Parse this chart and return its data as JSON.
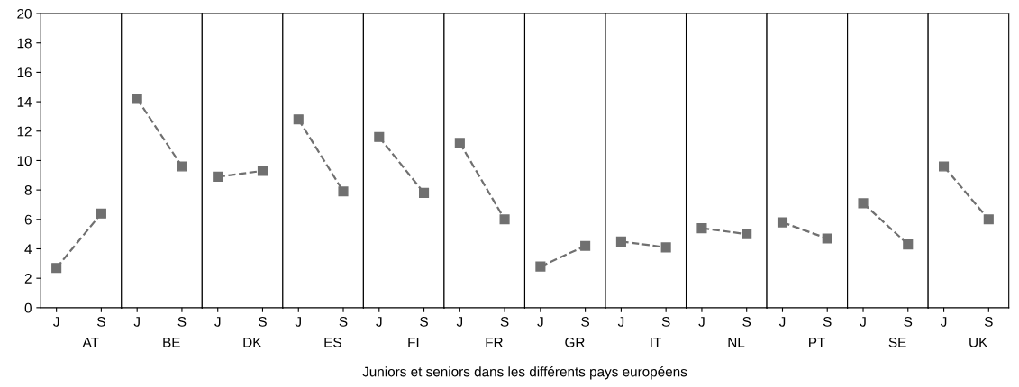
{
  "chart_data": [
    {
      "type": "line",
      "categories": [
        "J",
        "S"
      ],
      "xlabel": "AT",
      "ylim": [
        0,
        20
      ],
      "yticks": [
        0,
        2,
        4,
        6,
        8,
        10,
        12,
        14,
        16,
        18,
        20
      ],
      "marker": "square",
      "line_style": "dashed",
      "grid": false,
      "series": [
        {
          "color": "#707070",
          "values": [
            2.7,
            6.4
          ]
        }
      ],
      "annotations": [
        "Juniors et seniors dans les différents pays européens"
      ]
    },
    {
      "type": "line",
      "categories": [
        "J",
        "S"
      ],
      "xlabel": "BE",
      "ylim": [
        0,
        20
      ],
      "tick_labels": "x",
      "marker": "square",
      "line_style": "dashed",
      "grid": false,
      "series": [
        {
          "color": "#707070",
          "values": [
            14.2,
            9.6
          ]
        }
      ]
    },
    {
      "type": "line",
      "categories": [
        "J",
        "S"
      ],
      "xlabel": "DK",
      "ylim": [
        0,
        20
      ],
      "tick_labels": "x",
      "marker": "square",
      "line_style": "dashed",
      "grid": false,
      "series": [
        {
          "color": "#707070",
          "values": [
            8.9,
            9.3
          ]
        }
      ]
    },
    {
      "type": "line",
      "categories": [
        "J",
        "S"
      ],
      "xlabel": "ES",
      "ylim": [
        0,
        20
      ],
      "tick_labels": "x",
      "marker": "square",
      "line_style": "dashed",
      "grid": false,
      "series": [
        {
          "color": "#707070",
          "values": [
            12.8,
            7.9
          ]
        }
      ]
    },
    {
      "type": "line",
      "categories": [
        "J",
        "S"
      ],
      "xlabel": "FI",
      "ylim": [
        0,
        20
      ],
      "tick_labels": "x",
      "marker": "square",
      "line_style": "dashed",
      "grid": false,
      "series": [
        {
          "color": "#707070",
          "values": [
            11.6,
            7.8
          ]
        }
      ]
    },
    {
      "type": "line",
      "categories": [
        "J",
        "S"
      ],
      "xlabel": "FR",
      "ylim": [
        0,
        20
      ],
      "tick_labels": "x",
      "marker": "square",
      "line_style": "dashed",
      "grid": false,
      "series": [
        {
          "color": "#707070",
          "values": [
            11.2,
            6.0
          ]
        }
      ]
    },
    {
      "type": "line",
      "categories": [
        "J",
        "S"
      ],
      "xlabel": "GR",
      "ylim": [
        0,
        20
      ],
      "tick_labels": "x",
      "marker": "square",
      "line_style": "dashed",
      "grid": false,
      "series": [
        {
          "color": "#707070",
          "values": [
            2.8,
            4.2
          ]
        }
      ]
    },
    {
      "type": "line",
      "categories": [
        "J",
        "S"
      ],
      "xlabel": "IT",
      "ylim": [
        0,
        20
      ],
      "tick_labels": "x",
      "marker": "square",
      "line_style": "dashed",
      "grid": false,
      "series": [
        {
          "color": "#707070",
          "values": [
            4.5,
            4.1
          ]
        }
      ]
    },
    {
      "type": "line",
      "categories": [
        "J",
        "S"
      ],
      "xlabel": "NL",
      "ylim": [
        0,
        20
      ],
      "tick_labels": "x",
      "marker": "square",
      "line_style": "dashed",
      "grid": false,
      "series": [
        {
          "color": "#707070",
          "values": [
            5.4,
            5.0
          ]
        }
      ]
    },
    {
      "type": "line",
      "categories": [
        "J",
        "S"
      ],
      "xlabel": "PT",
      "ylim": [
        0,
        20
      ],
      "tick_labels": "x",
      "marker": "square",
      "line_style": "dashed",
      "grid": false,
      "series": [
        {
          "color": "#707070",
          "values": [
            5.8,
            4.7
          ]
        }
      ]
    },
    {
      "type": "line",
      "categories": [
        "J",
        "S"
      ],
      "xlabel": "SE",
      "ylim": [
        0,
        20
      ],
      "tick_labels": "x",
      "marker": "square",
      "line_style": "dashed",
      "grid": false,
      "series": [
        {
          "color": "#707070",
          "values": [
            7.1,
            4.3
          ]
        }
      ]
    },
    {
      "type": "line",
      "categories": [
        "J",
        "S"
      ],
      "xlabel": "UK",
      "ylim": [
        0,
        20
      ],
      "tick_labels": "x",
      "marker": "square",
      "line_style": "dashed",
      "grid": false,
      "series": [
        {
          "color": "#707070",
          "values": [
            9.6,
            6.0
          ]
        }
      ]
    }
  ]
}
